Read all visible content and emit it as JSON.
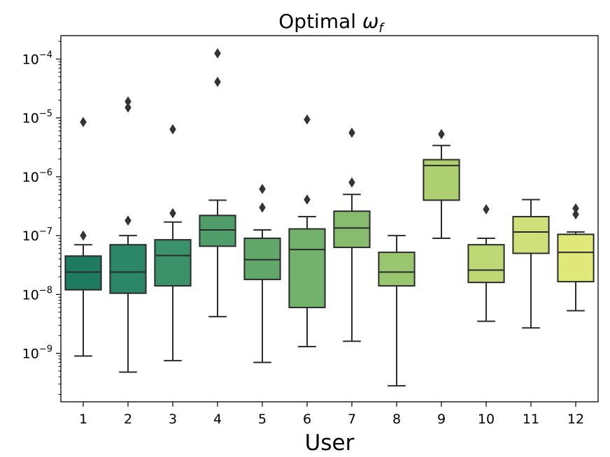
{
  "chart_data": {
    "type": "box",
    "title": "Optimal ωf",
    "title_main": "Optimal ",
    "title_symbol": "ω",
    "title_subscript": "f",
    "xlabel": "User",
    "ylabel": "",
    "yscale": "log",
    "ylim": [
      1.5e-10,
      0.00025
    ],
    "yticks": [
      {
        "value": 1e-09,
        "base": "10",
        "exp": "−9"
      },
      {
        "value": 1e-08,
        "base": "10",
        "exp": "−8"
      },
      {
        "value": 1e-07,
        "base": "10",
        "exp": "−7"
      },
      {
        "value": 1e-06,
        "base": "10",
        "exp": "−6"
      },
      {
        "value": 1e-05,
        "base": "10",
        "exp": "−5"
      },
      {
        "value": 0.0001,
        "base": "10",
        "exp": "−4"
      }
    ],
    "categories": [
      "1",
      "2",
      "3",
      "4",
      "5",
      "6",
      "7",
      "8",
      "9",
      "10",
      "11",
      "12"
    ],
    "colors": [
      "#1e7b5f",
      "#2b8767",
      "#3a916a",
      "#4f9d68",
      "#62a86b",
      "#73b26d",
      "#87bc6e",
      "#99c66f",
      "#afd070",
      "#bed876",
      "#cfe07a",
      "#e0e87a"
    ],
    "boxes": [
      {
        "user": "1",
        "whislo": 9e-10,
        "q1": 1.2e-08,
        "med": 2.4e-08,
        "q3": 4.5e-08,
        "whishi": 7e-08,
        "fliers": [
          1e-07,
          8.5e-06
        ]
      },
      {
        "user": "2",
        "whislo": 4.8e-10,
        "q1": 1.05e-08,
        "med": 2.4e-08,
        "q3": 7e-08,
        "whishi": 1e-07,
        "fliers": [
          1.8e-07,
          1.5e-05,
          1.9e-05
        ]
      },
      {
        "user": "3",
        "whislo": 7.5e-10,
        "q1": 1.4e-08,
        "med": 4.6e-08,
        "q3": 8.5e-08,
        "whishi": 1.7e-07,
        "fliers": [
          2.4e-07,
          6.4e-06
        ]
      },
      {
        "user": "4",
        "whislo": 4.2e-09,
        "q1": 6.6e-08,
        "med": 1.25e-07,
        "q3": 2.2e-07,
        "whishi": 4e-07,
        "fliers": [
          4.1e-05,
          0.000125
        ]
      },
      {
        "user": "5",
        "whislo": 7e-10,
        "q1": 1.8e-08,
        "med": 3.9e-08,
        "q3": 9e-08,
        "whishi": 1.25e-07,
        "fliers": [
          3e-07,
          6.2e-07
        ]
      },
      {
        "user": "6",
        "whislo": 1.3e-09,
        "q1": 6e-09,
        "med": 5.8e-08,
        "q3": 1.3e-07,
        "whishi": 2.1e-07,
        "fliers": [
          4.1e-07,
          9.4e-06
        ]
      },
      {
        "user": "7",
        "whislo": 1.6e-09,
        "q1": 6.3e-08,
        "med": 1.35e-07,
        "q3": 2.6e-07,
        "whishi": 5e-07,
        "fliers": [
          8e-07,
          5.6e-06
        ]
      },
      {
        "user": "8",
        "whislo": 2.8e-10,
        "q1": 1.4e-08,
        "med": 2.4e-08,
        "q3": 5.2e-08,
        "whishi": 1e-07,
        "fliers": []
      },
      {
        "user": "9",
        "whislo": 9e-08,
        "q1": 4e-07,
        "med": 1.55e-06,
        "q3": 1.95e-06,
        "whishi": 3.4e-06,
        "fliers": [
          5.3e-06
        ]
      },
      {
        "user": "10",
        "whislo": 3.5e-09,
        "q1": 1.6e-08,
        "med": 2.6e-08,
        "q3": 7e-08,
        "whishi": 9e-08,
        "fliers": [
          2.8e-07
        ]
      },
      {
        "user": "11",
        "whislo": 2.7e-09,
        "q1": 5e-08,
        "med": 1.15e-07,
        "q3": 2.1e-07,
        "whishi": 4.1e-07,
        "fliers": []
      },
      {
        "user": "12",
        "whislo": 5.3e-09,
        "q1": 1.65e-08,
        "med": 5.2e-08,
        "q3": 1.05e-07,
        "whishi": 1.15e-07,
        "fliers": [
          2.3e-07,
          2.9e-07
        ]
      }
    ]
  }
}
